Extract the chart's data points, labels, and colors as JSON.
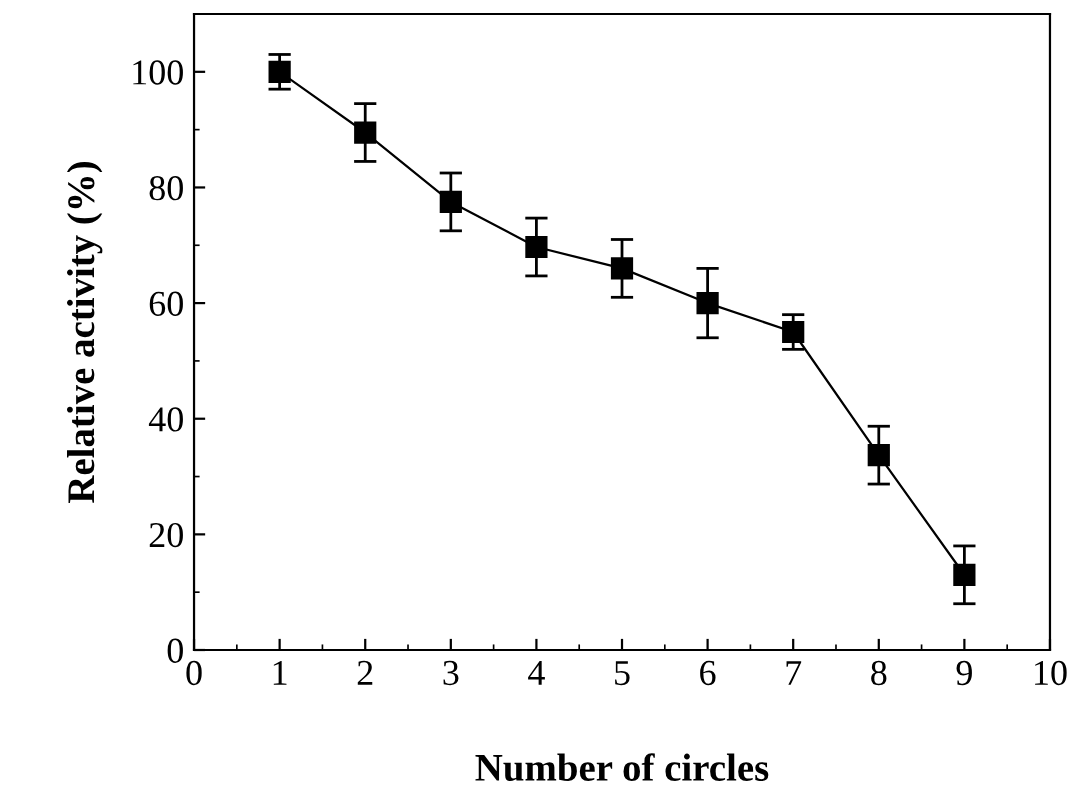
{
  "chart_data": {
    "type": "line",
    "xlabel": "Number of circles",
    "ylabel": "Relative activity (%)",
    "x": [
      1,
      2,
      3,
      4,
      5,
      6,
      7,
      8,
      9
    ],
    "series": [
      {
        "color": "#000000",
        "values": [
          100,
          89.5,
          77.5,
          69.7,
          66,
          60,
          55,
          33.7,
          13
        ],
        "errors": [
          3,
          5,
          5,
          5,
          5,
          6,
          3,
          5,
          5
        ]
      }
    ],
    "xlim": [
      0,
      10
    ],
    "xticks": [
      0,
      1,
      2,
      3,
      4,
      5,
      6,
      7,
      8,
      9,
      10
    ],
    "ylim": [
      0,
      110
    ],
    "yticks": [
      0,
      20,
      40,
      60,
      80,
      100
    ],
    "marker": "square",
    "line_style": "solid",
    "grid": false,
    "legend": false
  }
}
